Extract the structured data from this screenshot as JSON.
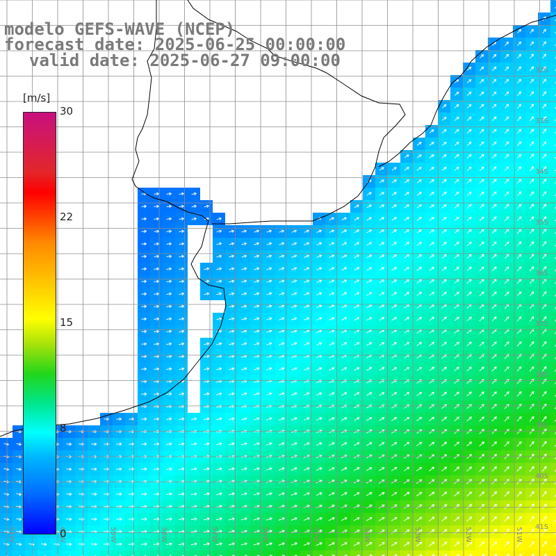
{
  "title": {
    "line1": "modelo GEFS-WAVE (NCEP)",
    "line2": "forecast date: 2025-06-25 00:00:00",
    "line3": "valid date: 2025-06-27 09:00:00"
  },
  "colorbar": {
    "unit": "[m/s]",
    "min": 0,
    "max": 30,
    "ticks": [
      "30",
      "22",
      "15",
      "8",
      "0"
    ],
    "tick_values": [
      30,
      22,
      15,
      8,
      0
    ]
  },
  "axes": {
    "lat_labels": [
      "32S",
      "33S",
      "34S",
      "35S",
      "36S",
      "37S",
      "38S",
      "39S",
      "40S",
      "41S"
    ],
    "lon_labels": [
      "61W",
      "60W",
      "59W",
      "58W",
      "57W",
      "56W",
      "55W",
      "54W",
      "53W",
      "52W",
      "51W"
    ]
  },
  "colors": {
    "land": "#ffffff",
    "grid": "#8c8c8c",
    "coast": "#000000",
    "arrow": "#ffffff",
    "label": "#888888"
  }
}
